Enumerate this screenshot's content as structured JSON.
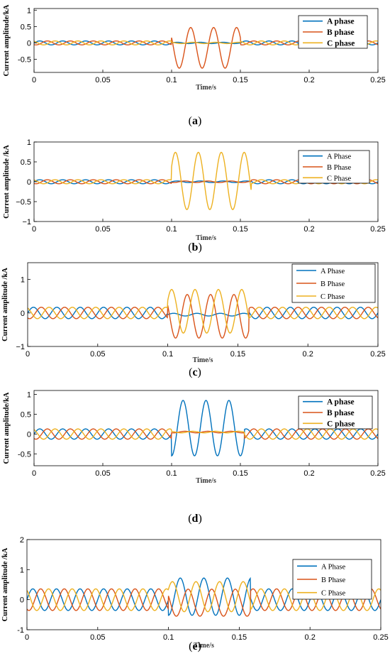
{
  "colors": {
    "a": "#0072BD",
    "b": "#D95319",
    "c": "#EDB120"
  },
  "chart_data": [
    {
      "type": "line",
      "caption_label": "a",
      "ylabel": "Current amplitude/kA",
      "xlabel": "Time/s",
      "xlim": [
        0,
        0.25
      ],
      "ylim": [
        -0.9,
        1.05
      ],
      "xticks": [
        0,
        0.05,
        0.1,
        0.15,
        0.2,
        0.25
      ],
      "xtick_labels": [
        "0",
        "0.05",
        "0.1",
        "0.15",
        "0.2",
        "0.25"
      ],
      "yticks": [
        -0.5,
        0,
        0.5,
        1
      ],
      "ytick_labels": [
        "-0.5",
        "0",
        "0.5",
        "1"
      ],
      "legend": "top-right",
      "grid": false,
      "series": [
        {
          "name": "A phase",
          "color_key": "a",
          "phase_deg": 0,
          "normal_amp": 0.06,
          "fault": {
            "start": 0.1,
            "end": 0.15,
            "amp": 0.02,
            "offset": 0.0
          }
        },
        {
          "name": "B phase",
          "color_key": "b",
          "phase_deg": -120,
          "normal_amp": 0.06,
          "fault": {
            "start": 0.1,
            "end": 0.15,
            "amp": 0.62,
            "offset": -0.15
          }
        },
        {
          "name": "C phase",
          "color_key": "c",
          "phase_deg": 120,
          "normal_amp": 0.06,
          "fault": {
            "start": 0.1,
            "end": 0.15,
            "amp": 0.02,
            "offset": 0.0
          }
        }
      ]
    },
    {
      "type": "line",
      "caption_label": "b",
      "ylabel": "Current amplitude /kA",
      "xlabel": "Time/s",
      "xlim": [
        0,
        0.25
      ],
      "ylim": [
        -1,
        1
      ],
      "xticks": [
        0,
        0.05,
        0.1,
        0.15,
        0.2,
        0.25
      ],
      "xtick_labels": [
        "0",
        "0.05",
        "0.1",
        "0.15",
        "0.2",
        "0.25"
      ],
      "yticks": [
        -1,
        -0.5,
        0,
        0.5,
        1
      ],
      "ytick_labels": [
        "−1",
        "−0.5",
        "0",
        "0.5",
        "1"
      ],
      "legend": "top-right",
      "grid": false,
      "series": [
        {
          "name": "A Phase",
          "color_key": "a",
          "phase_deg": 0,
          "normal_amp": 0.05,
          "fault": {
            "start": 0.1,
            "end": 0.158,
            "amp": 0.02,
            "offset": 0.0
          }
        },
        {
          "name": "B Phase",
          "color_key": "b",
          "phase_deg": -120,
          "normal_amp": 0.05,
          "fault": {
            "start": 0.1,
            "end": 0.158,
            "amp": 0.02,
            "offset": 0.0
          }
        },
        {
          "name": "C Phase",
          "color_key": "c",
          "phase_deg": 120,
          "normal_amp": 0.05,
          "fault": {
            "start": 0.1,
            "end": 0.158,
            "amp": 0.72,
            "offset": 0.02
          }
        }
      ]
    },
    {
      "type": "line",
      "caption_label": "c",
      "ylabel": "Current amplitude /kA",
      "xlabel": "Time/s",
      "xlim": [
        0,
        0.25
      ],
      "ylim": [
        -1,
        1.5
      ],
      "xticks": [
        0,
        0.05,
        0.1,
        0.15,
        0.2,
        0.25
      ],
      "xtick_labels": [
        "0",
        "0.05",
        "0.1",
        "0.15",
        "0.2",
        "0.25"
      ],
      "yticks": [
        -1,
        0,
        1
      ],
      "ytick_labels": [
        "−1",
        "0",
        "1"
      ],
      "legend": "top-right",
      "grid": false,
      "series": [
        {
          "name": "A Phase",
          "color_key": "a",
          "phase_deg": 0,
          "normal_amp": 0.17,
          "fault": {
            "start": 0.1,
            "end": 0.158,
            "amp": 0.04,
            "offset": -0.05
          }
        },
        {
          "name": "B Phase",
          "color_key": "b",
          "phase_deg": -120,
          "normal_amp": 0.17,
          "fault": {
            "start": 0.1,
            "end": 0.158,
            "amp": 0.65,
            "offset": -0.1
          }
        },
        {
          "name": "C Phase",
          "color_key": "c",
          "phase_deg": 120,
          "normal_amp": 0.17,
          "fault": {
            "start": 0.1,
            "end": 0.158,
            "amp": 0.65,
            "offset": 0.05
          }
        }
      ]
    },
    {
      "type": "line",
      "caption_label": "d",
      "ylabel": "Current amplitude/kA",
      "xlabel": "Time/s",
      "xlim": [
        0,
        0.25
      ],
      "ylim": [
        -0.8,
        1.1
      ],
      "xticks": [
        0,
        0.05,
        0.1,
        0.15,
        0.2,
        0.25
      ],
      "xtick_labels": [
        "0",
        "0.05",
        "0.1",
        "0.15",
        "0.2",
        "0.25"
      ],
      "yticks": [
        -0.5,
        0,
        0.5,
        1
      ],
      "ytick_labels": [
        "-0.5",
        "0",
        "0.5",
        "1"
      ],
      "legend": "top-right",
      "grid": false,
      "series": [
        {
          "name": "A phase",
          "color_key": "a",
          "phase_deg": 0,
          "normal_amp": 0.13,
          "fault": {
            "start": 0.1,
            "end": 0.153,
            "amp": 0.7,
            "offset": 0.15
          }
        },
        {
          "name": "B phase",
          "color_key": "b",
          "phase_deg": -120,
          "normal_amp": 0.13,
          "fault": {
            "start": 0.1,
            "end": 0.153,
            "amp": 0.02,
            "offset": 0.05
          }
        },
        {
          "name": "C phase",
          "color_key": "c",
          "phase_deg": 120,
          "normal_amp": 0.13,
          "fault": {
            "start": 0.1,
            "end": 0.153,
            "amp": 0.02,
            "offset": 0.05
          }
        }
      ]
    },
    {
      "type": "line",
      "caption_label": "e",
      "ylabel": "Current amplitude /kA",
      "xlabel": "Time/s",
      "xlim": [
        0,
        0.25
      ],
      "ylim": [
        -1,
        2
      ],
      "xticks": [
        0,
        0.05,
        0.1,
        0.15,
        0.2,
        0.25
      ],
      "xtick_labels": [
        "0",
        "0.05",
        "0.1",
        "0.15",
        "0.2",
        "0.25"
      ],
      "yticks": [
        -1,
        0,
        1,
        2
      ],
      "ytick_labels": [
        "-1",
        "0",
        "1",
        "2"
      ],
      "legend": "top-right",
      "grid": false,
      "series": [
        {
          "name": "A Phase",
          "color_key": "a",
          "phase_deg": 0,
          "normal_amp": 0.36,
          "fault": {
            "start": 0.1,
            "end": 0.158,
            "amp": 0.62,
            "offset": 0.1
          }
        },
        {
          "name": "B Phase",
          "color_key": "b",
          "phase_deg": -120,
          "normal_amp": 0.36,
          "fault": {
            "start": 0.1,
            "end": 0.158,
            "amp": 0.45,
            "offset": -0.1
          }
        },
        {
          "name": "C Phase",
          "color_key": "c",
          "phase_deg": 120,
          "normal_amp": 0.36,
          "fault": {
            "start": 0.1,
            "end": 0.158,
            "amp": 0.5,
            "offset": 0.1
          }
        }
      ]
    }
  ]
}
